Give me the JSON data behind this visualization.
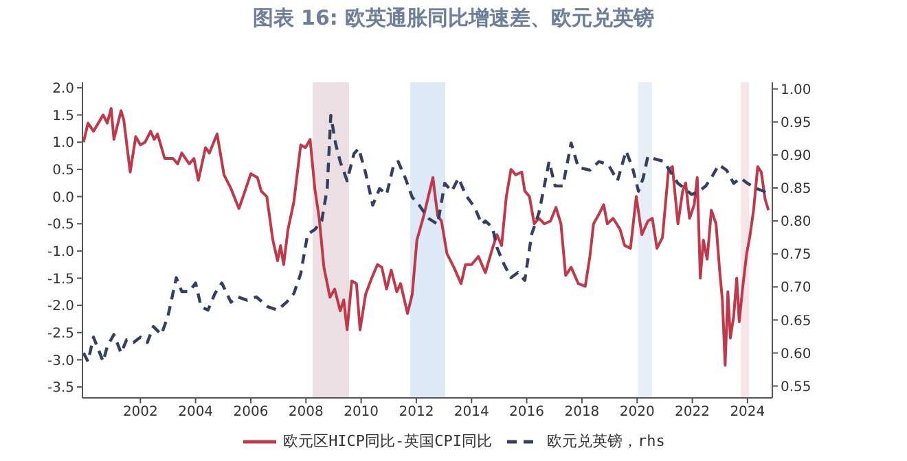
{
  "chart_data": {
    "type": "line",
    "title": "图表 16: 欧英通胀同比增速差、欧元兑英镑",
    "xlim": [
      1999.9,
      2024.9
    ],
    "xticks": [
      2002,
      2004,
      2006,
      2008,
      2010,
      2012,
      2014,
      2016,
      2018,
      2020,
      2022,
      2024
    ],
    "ylim": [
      -3.7,
      2.1
    ],
    "yticks": [
      {
        "value": 2,
        "label": "2.0"
      },
      1.5,
      {
        "value": 1,
        "label": "1.0"
      },
      0.5,
      {
        "value": 0,
        "label": "0.0"
      },
      -0.5,
      {
        "value": -1,
        "label": "-1.0"
      },
      -1.5,
      {
        "value": -2,
        "label": "-2.0"
      },
      -2.5,
      {
        "value": -3,
        "label": "-3.0"
      },
      -3.5
    ],
    "y2lim": [
      0.532,
      1.01
    ],
    "y2ticks": [
      {
        "value": 1,
        "label": "1.00"
      },
      0.95,
      {
        "value": 0.9,
        "label": "0.90"
      },
      0.85,
      {
        "value": 0.8,
        "label": "0.80"
      },
      0.75,
      {
        "value": 0.7,
        "label": "0.70"
      },
      0.65,
      {
        "value": 0.6,
        "label": "0.60"
      },
      0.55
    ],
    "grid": false,
    "legend": "bottom",
    "marker": "none",
    "bands": [
      {
        "axis": "x",
        "from": 2008.24,
        "to": 2009.56,
        "color": "#ecdfe3"
      },
      {
        "axis": "x",
        "from": 2011.78,
        "to": 2013.05,
        "color": "#dde9f7"
      },
      {
        "axis": "x",
        "from": 2020.03,
        "to": 2020.54,
        "color": "#e8eef7"
      },
      {
        "axis": "x",
        "from": 2023.76,
        "to": 2024.06,
        "color": "#f6e4e6"
      }
    ],
    "series": [
      {
        "name": "欧元区HICP同比-英国CPI同比",
        "color": "#c0394b",
        "line_style": "solid",
        "x": [
          1999.94,
          2000.1,
          2000.3,
          2000.65,
          2000.8,
          2000.94,
          2001.04,
          2001.3,
          2001.4,
          2001.63,
          2001.83,
          2002,
          2002.17,
          2002.37,
          2002.5,
          2002.62,
          2002.88,
          2003.18,
          2003.35,
          2003.5,
          2003.77,
          2003.94,
          2004.1,
          2004.36,
          2004.5,
          2004.78,
          2005.03,
          2005.28,
          2005.57,
          2005.79,
          2006,
          2006.24,
          2006.38,
          2006.58,
          2006.8,
          2006.97,
          2007.08,
          2007.19,
          2007.35,
          2007.56,
          2007.81,
          2007.98,
          2008.15,
          2008.32,
          2008.48,
          2008.65,
          2008.87,
          2009.04,
          2009.24,
          2009.37,
          2009.49,
          2009.66,
          2009.83,
          2009.96,
          2010.16,
          2010.38,
          2010.59,
          2010.75,
          2010.92,
          2011.09,
          2011.29,
          2011.43,
          2011.68,
          2011.85,
          2012.02,
          2012.27,
          2012.6,
          2012.77,
          2012.91,
          2013.11,
          2013.36,
          2013.62,
          2013.78,
          2014,
          2014.25,
          2014.5,
          2014.76,
          2014.92,
          2015.09,
          2015.26,
          2015.43,
          2015.6,
          2015.82,
          2015.93,
          2016.1,
          2016.27,
          2016.44,
          2016.64,
          2016.86,
          2017.06,
          2017.24,
          2017.41,
          2017.61,
          2017.87,
          2018.12,
          2018.29,
          2018.42,
          2018.59,
          2018.79,
          2018.92,
          2019.13,
          2019.38,
          2019.55,
          2019.76,
          2019.97,
          2020.17,
          2020.39,
          2020.55,
          2020.72,
          2020.92,
          2021.14,
          2021.28,
          2021.48,
          2021.65,
          2021.76,
          2021.9,
          2022.07,
          2022.18,
          2022.29,
          2022.4,
          2022.54,
          2022.69,
          2022.86,
          2022.99,
          2023.09,
          2023.19,
          2023.29,
          2023.38,
          2023.5,
          2023.61,
          2023.7,
          2023.83,
          2023.97,
          2024.08,
          2024.22,
          2024.37,
          2024.5,
          2024.64,
          2024.76
        ],
        "values": [
          1.0,
          1.35,
          1.2,
          1.5,
          1.35,
          1.62,
          1.05,
          1.58,
          1.4,
          0.45,
          1.1,
          0.95,
          1.0,
          1.2,
          1.05,
          1.15,
          0.7,
          0.7,
          0.6,
          0.8,
          0.6,
          0.7,
          0.3,
          0.9,
          0.8,
          1.15,
          0.4,
          0.15,
          -0.22,
          0.1,
          0.42,
          0.35,
          0.1,
          0.0,
          -0.8,
          -1.18,
          -0.9,
          -1.25,
          -0.6,
          -0.1,
          0.95,
          0.9,
          1.05,
          0.15,
          -0.4,
          -1.3,
          -1.85,
          -1.7,
          -2.1,
          -1.9,
          -2.45,
          -1.55,
          -1.6,
          -2.45,
          -1.8,
          -1.5,
          -1.25,
          -1.3,
          -1.7,
          -1.35,
          -1.75,
          -1.6,
          -2.15,
          -1.8,
          -0.8,
          -0.35,
          0.35,
          -0.35,
          -0.45,
          -1.05,
          -1.3,
          -1.6,
          -1.25,
          -1.25,
          -1.1,
          -1.4,
          -0.95,
          -0.7,
          -0.9,
          0.0,
          0.5,
          0.4,
          0.45,
          0.1,
          0.0,
          -0.5,
          -0.4,
          -0.5,
          -0.45,
          -0.2,
          -0.5,
          -1.45,
          -1.3,
          -1.6,
          -1.65,
          -1.1,
          -0.5,
          -0.35,
          -0.15,
          -0.5,
          -0.4,
          -0.6,
          -0.9,
          -0.95,
          0.0,
          -0.7,
          -0.45,
          -0.4,
          -0.95,
          -0.75,
          0.5,
          0.55,
          -0.5,
          0.1,
          0.25,
          -0.4,
          -0.15,
          0.35,
          -1.5,
          -0.8,
          -1.15,
          -0.25,
          -0.5,
          -1.35,
          -1.9,
          -3.1,
          -1.75,
          -2.6,
          -2.2,
          -1.5,
          -2.3,
          -1.65,
          -1.05,
          -0.75,
          -0.25,
          0.55,
          0.45,
          -0.05,
          -0.25
        ]
      },
      {
        "name": "欧元兑英镑，rhs",
        "color": "#34405e",
        "line_style": "dashed",
        "axis": "y2",
        "x": [
          1999.94,
          2000.1,
          2000.3,
          2000.65,
          2000.8,
          2001.04,
          2001.3,
          2001.5,
          2001.75,
          2002,
          2002.25,
          2002.47,
          2002.76,
          2003,
          2003.3,
          2003.5,
          2003.77,
          2004,
          2004.2,
          2004.45,
          2004.7,
          2004.95,
          2005.28,
          2005.53,
          2005.87,
          2006.2,
          2006.62,
          2006.97,
          2007.3,
          2007.56,
          2007.81,
          2008.06,
          2008.32,
          2008.57,
          2008.77,
          2008.9,
          2009.07,
          2009.24,
          2009.49,
          2009.74,
          2009.91,
          2010.16,
          2010.42,
          2010.67,
          2010.92,
          2011.18,
          2011.34,
          2011.6,
          2011.85,
          2012.1,
          2012.44,
          2012.77,
          2013.03,
          2013.28,
          2013.53,
          2013.78,
          2014.12,
          2014.37,
          2014.5,
          2014.76,
          2014.92,
          2015.18,
          2015.43,
          2015.68,
          2015.93,
          2016.18,
          2016.44,
          2016.6,
          2016.81,
          2017.03,
          2017.31,
          2017.61,
          2017.87,
          2018.29,
          2018.62,
          2018.96,
          2019.29,
          2019.6,
          2019.83,
          2020.05,
          2020.22,
          2020.39,
          2020.64,
          2020.97,
          2021.23,
          2021.48,
          2021.73,
          2021.98,
          2022.24,
          2022.49,
          2022.74,
          2022.96,
          2023.24,
          2023.5,
          2023.75,
          2024,
          2024.34,
          2024.59,
          2024.8
        ],
        "values": [
          0.6,
          0.587,
          0.624,
          0.587,
          0.61,
          0.628,
          0.6,
          0.62,
          0.616,
          0.624,
          0.616,
          0.64,
          0.628,
          0.656,
          0.714,
          0.693,
          0.693,
          0.706,
          0.67,
          0.665,
          0.69,
          0.706,
          0.677,
          0.685,
          0.68,
          0.685,
          0.67,
          0.665,
          0.677,
          0.69,
          0.72,
          0.78,
          0.787,
          0.8,
          0.849,
          0.96,
          0.918,
          0.89,
          0.861,
          0.902,
          0.91,
          0.873,
          0.824,
          0.849,
          0.84,
          0.885,
          0.89,
          0.865,
          0.836,
          0.824,
          0.804,
          0.795,
          0.857,
          0.845,
          0.865,
          0.84,
          0.82,
          0.795,
          0.8,
          0.79,
          0.76,
          0.734,
          0.714,
          0.722,
          0.71,
          0.78,
          0.812,
          0.845,
          0.89,
          0.853,
          0.853,
          0.918,
          0.881,
          0.877,
          0.89,
          0.885,
          0.861,
          0.906,
          0.881,
          0.845,
          0.865,
          0.898,
          0.894,
          0.89,
          0.873,
          0.857,
          0.849,
          0.84,
          0.845,
          0.853,
          0.869,
          0.885,
          0.877,
          0.857,
          0.865,
          0.857,
          0.849,
          0.845,
          0.836
        ]
      }
    ]
  }
}
